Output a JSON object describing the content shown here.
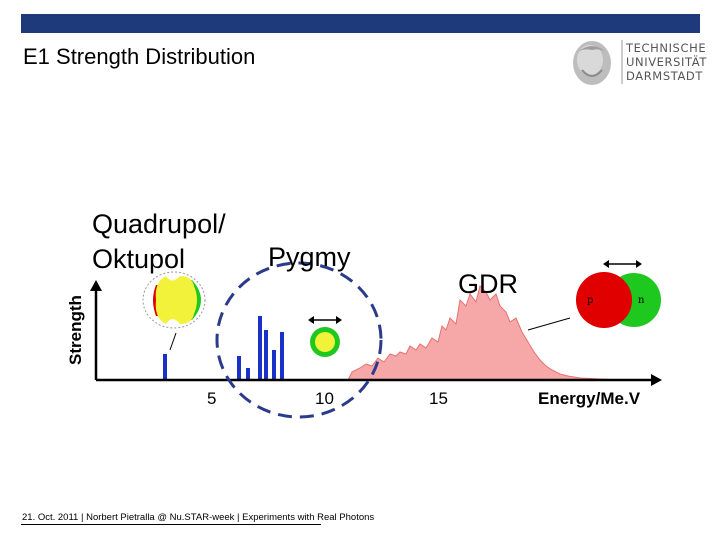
{
  "header": {
    "title": "E1 Strength Distribution",
    "logo_lines": [
      "TECHNISCHE",
      "UNIVERSITÄT",
      "DARMSTADT"
    ],
    "bar_color": "#1f3a7a"
  },
  "diagram": {
    "y_axis_label": "Strength",
    "x_axis_label": "Energy/Me.V",
    "x_ticks": [
      "5",
      "10",
      "15"
    ],
    "annotations": {
      "quadrupol_line1": "Quadrupol/",
      "quadrupol_line2": "Oktupol",
      "pygmy": "Pygmy",
      "gdr": "GDR",
      "proton_letter": "p",
      "neutron_letter": "n"
    },
    "colors": {
      "bar_blue": "#1a31c8",
      "gdr_fill": "#f6a8a8",
      "gdr_stroke": "#e87070",
      "circle_dash": "#2b3a8a",
      "proton_red": "#e00000",
      "neutron_green": "#1ec81e",
      "pygmy_yellow": "#f2f23a"
    }
  },
  "footer": {
    "text": "21. Oct. 2011  |  Norbert Pietralla @ Nu.STAR-week  |  Experiments with Real Photons"
  }
}
